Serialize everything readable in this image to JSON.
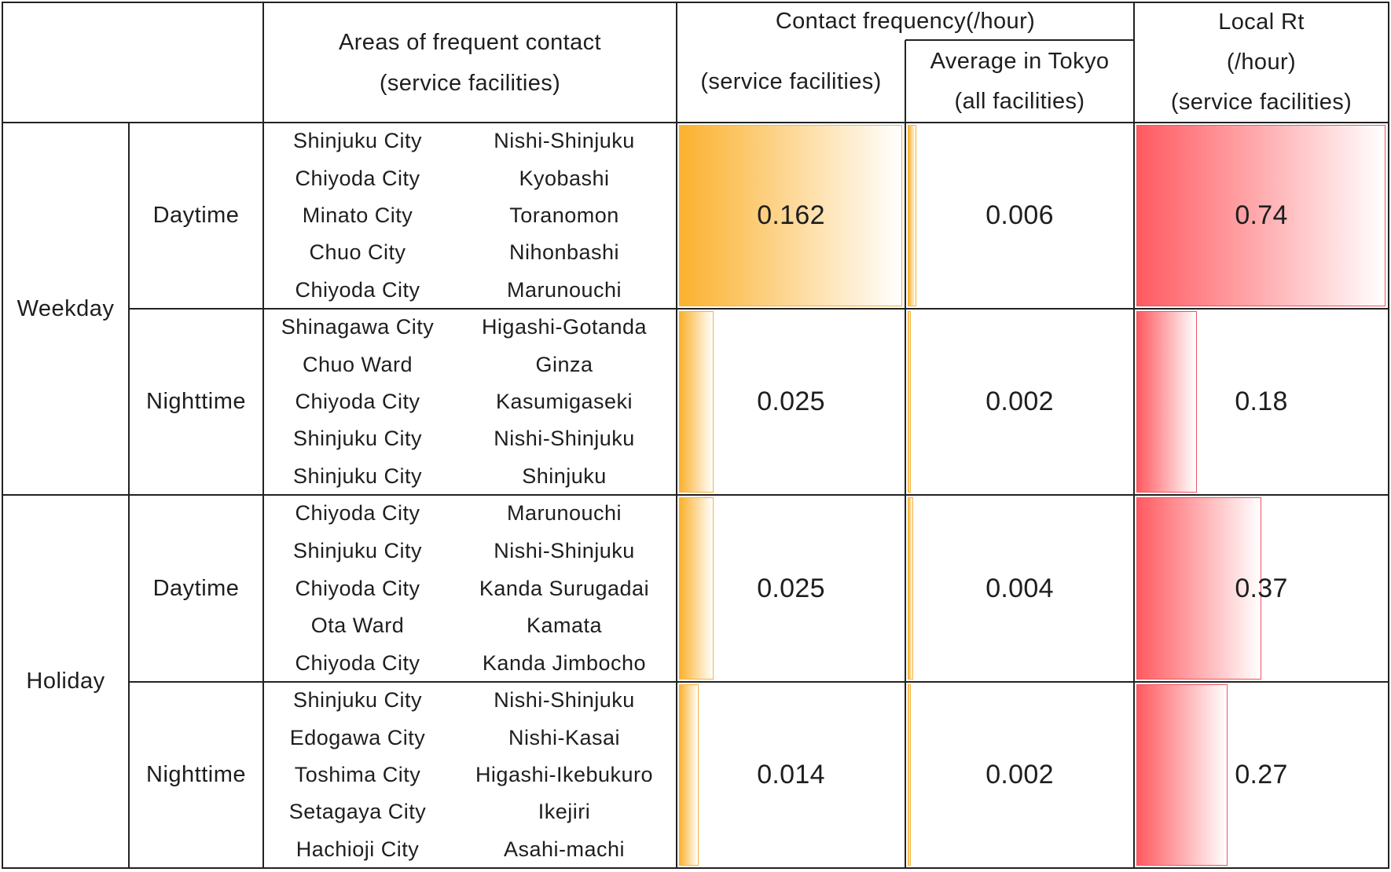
{
  "colors": {
    "contact_bar": "#FBB12E",
    "contact_bar_border": "#F4B340",
    "rt_bar": "#FF5A60",
    "rt_bar_border": "#EE5460",
    "rule": "#222222"
  },
  "chart_data": {
    "type": "table",
    "header": {
      "areas": [
        "Areas of frequent contact",
        "(service facilities)"
      ],
      "contact_frequency": "Contact frequency(/hour)",
      "contact_service": "(service facilities)",
      "contact_tokyo_avg": [
        "Average in Tokyo",
        "(all facilities)"
      ],
      "local_rt": [
        "Local Rt",
        "(/hour)",
        "(service facilities)"
      ]
    },
    "groups": [
      {
        "label": "Weekday",
        "periods": [
          {
            "label": "Daytime",
            "areas": [
              [
                "Shinjuku City",
                "Nishi-Shinjuku"
              ],
              [
                "Chiyoda City",
                "Kyobashi"
              ],
              [
                "Minato City",
                "Toranomon"
              ],
              [
                "Chuo City",
                "Nihonbashi"
              ],
              [
                "Chiyoda City",
                "Marunouchi"
              ]
            ],
            "contact_service": 0.162,
            "contact_tokyo_avg": 0.006,
            "local_rt": 0.74
          },
          {
            "label": "Nighttime",
            "areas": [
              [
                "Shinagawa City",
                "Higashi-Gotanda"
              ],
              [
                "Chuo Ward",
                "Ginza"
              ],
              [
                "Chiyoda City",
                "Kasumigaseki"
              ],
              [
                "Shinjuku City",
                "Nishi-Shinjuku"
              ],
              [
                "Shinjuku City",
                "Shinjuku"
              ]
            ],
            "contact_service": 0.025,
            "contact_tokyo_avg": 0.002,
            "local_rt": 0.18
          }
        ]
      },
      {
        "label": "Holiday",
        "periods": [
          {
            "label": "Daytime",
            "areas": [
              [
                "Chiyoda City",
                "Marunouchi"
              ],
              [
                "Shinjuku City",
                "Nishi-Shinjuku"
              ],
              [
                "Chiyoda City",
                "Kanda Surugadai"
              ],
              [
                "Ota Ward",
                "Kamata"
              ],
              [
                "Chiyoda City",
                "Kanda Jimbocho"
              ]
            ],
            "contact_service": 0.025,
            "contact_tokyo_avg": 0.004,
            "local_rt": 0.37
          },
          {
            "label": "Nighttime",
            "areas": [
              [
                "Shinjuku City",
                "Nishi-Shinjuku"
              ],
              [
                "Edogawa City",
                "Nishi-Kasai"
              ],
              [
                "Toshima City",
                "Higashi-Ikebukuro"
              ],
              [
                "Setagaya City",
                "Ikejiri"
              ],
              [
                "Hachioji City",
                "Asahi-machi"
              ]
            ],
            "contact_service": 0.014,
            "contact_tokyo_avg": 0.002,
            "local_rt": 0.27
          }
        ]
      }
    ]
  }
}
